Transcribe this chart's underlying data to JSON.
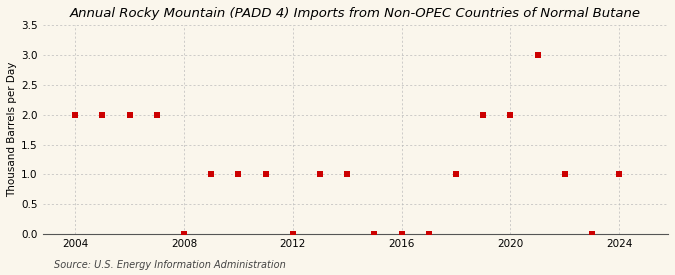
{
  "title": "Annual Rocky Mountain (PADD 4) Imports from Non-OPEC Countries of Normal Butane",
  "ylabel": "Thousand Barrels per Day",
  "source": "Source: U.S. Energy Information Administration",
  "years": [
    2004,
    2005,
    2006,
    2007,
    2008,
    2009,
    2010,
    2011,
    2012,
    2013,
    2014,
    2015,
    2016,
    2017,
    2018,
    2019,
    2020,
    2021,
    2022,
    2023,
    2024
  ],
  "values": [
    2.0,
    2.0,
    2.0,
    2.0,
    0.0,
    1.0,
    1.0,
    1.0,
    0.0,
    1.0,
    1.0,
    0.0,
    0.0,
    0.0,
    1.0,
    2.0,
    2.0,
    3.0,
    1.0,
    0.0,
    1.0
  ],
  "marker_color": "#cc0000",
  "marker_size": 18,
  "bg_color": "#faf6ec",
  "grid_color": "#bbbbbb",
  "ylim": [
    0.0,
    3.5
  ],
  "yticks": [
    0.0,
    0.5,
    1.0,
    1.5,
    2.0,
    2.5,
    3.0,
    3.5
  ],
  "xticks": [
    2004,
    2008,
    2012,
    2016,
    2020,
    2024
  ],
  "title_fontsize": 9.5,
  "label_fontsize": 7.5,
  "tick_fontsize": 7.5,
  "source_fontsize": 7.0
}
